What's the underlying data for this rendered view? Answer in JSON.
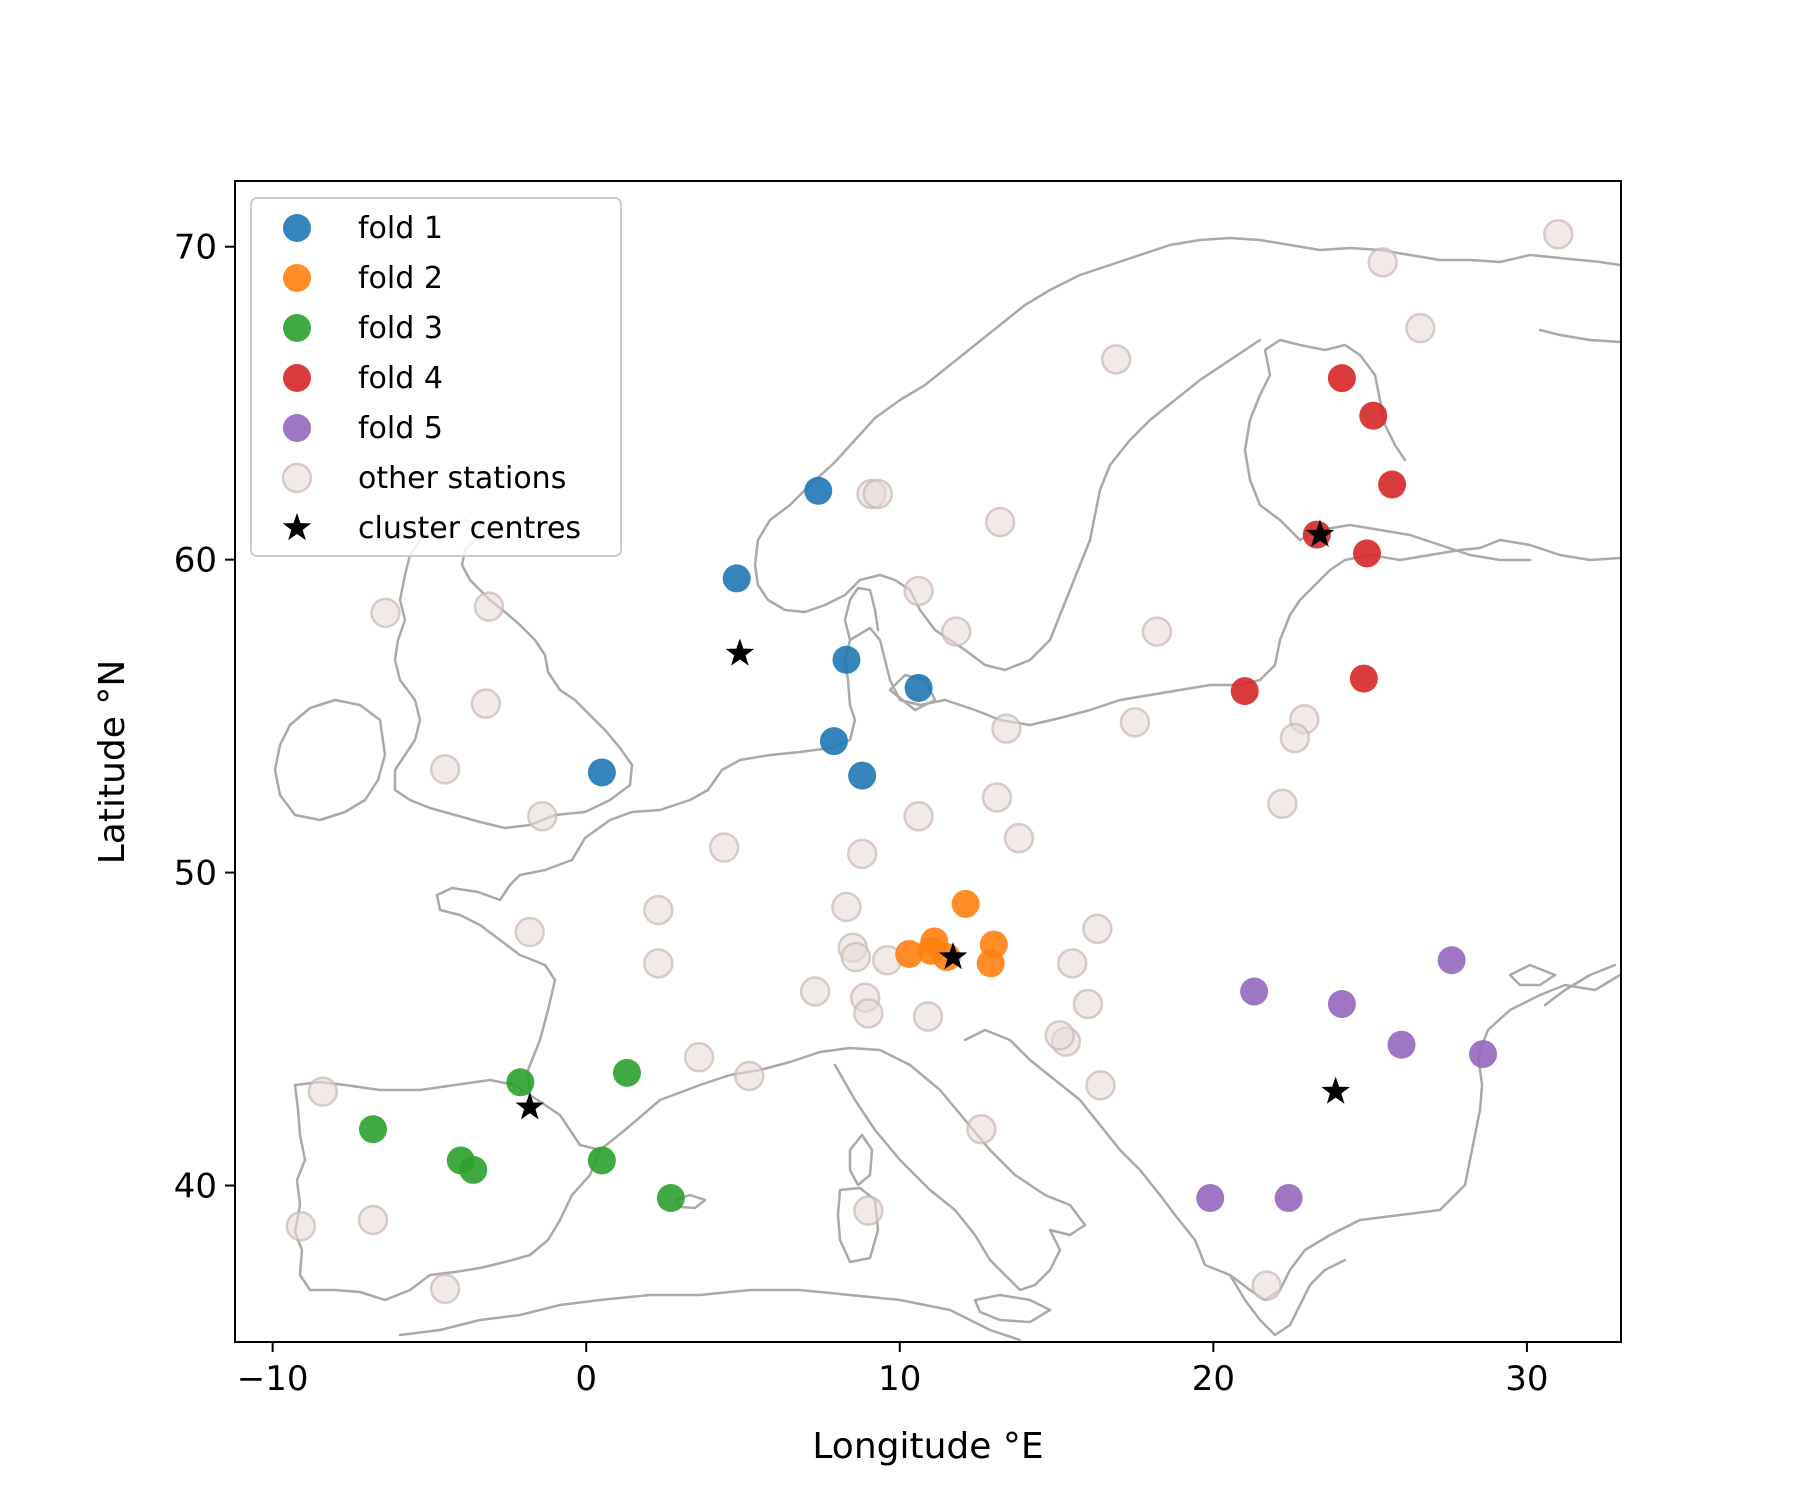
{
  "chart_data": {
    "type": "scatter",
    "xlabel": "Longitude °E",
    "ylabel": "Latitude °N",
    "xlim": [
      -11.2,
      33.0
    ],
    "ylim": [
      35.0,
      72.1
    ],
    "xticks": [
      -10,
      0,
      10,
      20,
      30
    ],
    "yticks": [
      40,
      50,
      60,
      70
    ],
    "tick_labels_x": [
      "−10",
      "0",
      "10",
      "20",
      "30"
    ],
    "tick_labels_y": [
      "40",
      "50",
      "60",
      "70"
    ],
    "grid": false,
    "legend_position": "upper-left",
    "background": "coastline map of Europe",
    "series": [
      {
        "name": "fold 1",
        "color": "#1f77b4",
        "marker": "circle",
        "points": [
          [
            7.4,
            62.2
          ],
          [
            4.8,
            59.4
          ],
          [
            8.3,
            56.8
          ],
          [
            10.6,
            55.9
          ],
          [
            7.9,
            54.2
          ],
          [
            8.8,
            53.1
          ],
          [
            0.5,
            53.2
          ]
        ]
      },
      {
        "name": "fold 2",
        "color": "#ff7f0e",
        "marker": "circle",
        "points": [
          [
            10.3,
            47.4
          ],
          [
            11.1,
            47.8
          ],
          [
            11.0,
            47.5
          ],
          [
            11.5,
            47.3
          ],
          [
            12.1,
            49.0
          ],
          [
            13.0,
            47.7
          ],
          [
            12.9,
            47.1
          ]
        ]
      },
      {
        "name": "fold 3",
        "color": "#2ca02c",
        "marker": "circle",
        "points": [
          [
            -2.1,
            43.3
          ],
          [
            1.3,
            43.6
          ],
          [
            -6.8,
            41.8
          ],
          [
            -4.0,
            40.8
          ],
          [
            -3.6,
            40.5
          ],
          [
            0.5,
            40.8
          ],
          [
            2.7,
            39.6
          ]
        ]
      },
      {
        "name": "fold 4",
        "color": "#d62728",
        "marker": "circle",
        "points": [
          [
            24.1,
            65.8
          ],
          [
            25.1,
            64.6
          ],
          [
            25.7,
            62.4
          ],
          [
            23.3,
            60.8
          ],
          [
            24.9,
            60.2
          ],
          [
            24.8,
            56.2
          ],
          [
            21.0,
            55.8
          ]
        ]
      },
      {
        "name": "fold 5",
        "color": "#9467bd",
        "marker": "circle",
        "points": [
          [
            27.6,
            47.2
          ],
          [
            21.3,
            46.2
          ],
          [
            24.1,
            45.8
          ],
          [
            26.0,
            44.5
          ],
          [
            28.6,
            44.2
          ],
          [
            19.9,
            39.6
          ],
          [
            22.4,
            39.6
          ]
        ]
      },
      {
        "name": "other stations",
        "color": "#e8dcd8",
        "marker": "circle",
        "points": [
          [
            31.0,
            70.4
          ],
          [
            25.4,
            69.5
          ],
          [
            26.6,
            67.4
          ],
          [
            16.9,
            66.4
          ],
          [
            9.1,
            62.1
          ],
          [
            9.3,
            62.1
          ],
          [
            13.2,
            61.2
          ],
          [
            10.6,
            59.0
          ],
          [
            11.8,
            57.7
          ],
          [
            18.2,
            57.7
          ],
          [
            -6.4,
            58.3
          ],
          [
            -3.1,
            58.5
          ],
          [
            -3.2,
            55.4
          ],
          [
            13.4,
            54.6
          ],
          [
            17.5,
            54.8
          ],
          [
            22.9,
            54.9
          ],
          [
            22.6,
            54.3
          ],
          [
            -4.5,
            53.3
          ],
          [
            22.2,
            52.2
          ],
          [
            13.1,
            52.4
          ],
          [
            -1.4,
            51.8
          ],
          [
            10.6,
            51.8
          ],
          [
            13.8,
            51.1
          ],
          [
            4.4,
            50.8
          ],
          [
            8.8,
            50.6
          ],
          [
            2.3,
            48.8
          ],
          [
            8.3,
            48.9
          ],
          [
            16.3,
            48.2
          ],
          [
            -1.8,
            48.1
          ],
          [
            8.5,
            47.6
          ],
          [
            8.6,
            47.3
          ],
          [
            9.6,
            47.2
          ],
          [
            2.3,
            47.1
          ],
          [
            15.5,
            47.1
          ],
          [
            7.3,
            46.2
          ],
          [
            8.9,
            46.0
          ],
          [
            16.0,
            45.8
          ],
          [
            9.0,
            45.5
          ],
          [
            10.9,
            45.4
          ],
          [
            15.3,
            44.6
          ],
          [
            15.1,
            44.8
          ],
          [
            3.6,
            44.1
          ],
          [
            5.2,
            43.5
          ],
          [
            16.4,
            43.2
          ],
          [
            -8.4,
            43.0
          ],
          [
            12.6,
            41.8
          ],
          [
            -6.8,
            38.9
          ],
          [
            9.0,
            39.2
          ],
          [
            -9.1,
            38.7
          ],
          [
            -4.5,
            36.7
          ],
          [
            21.7,
            36.8
          ]
        ]
      },
      {
        "name": "cluster centres",
        "color": "#000000",
        "marker": "star",
        "points": [
          [
            4.9,
            57.0
          ],
          [
            11.7,
            47.3
          ],
          [
            -1.8,
            42.5
          ],
          [
            23.4,
            60.8
          ],
          [
            23.9,
            43.0
          ]
        ]
      }
    ]
  }
}
